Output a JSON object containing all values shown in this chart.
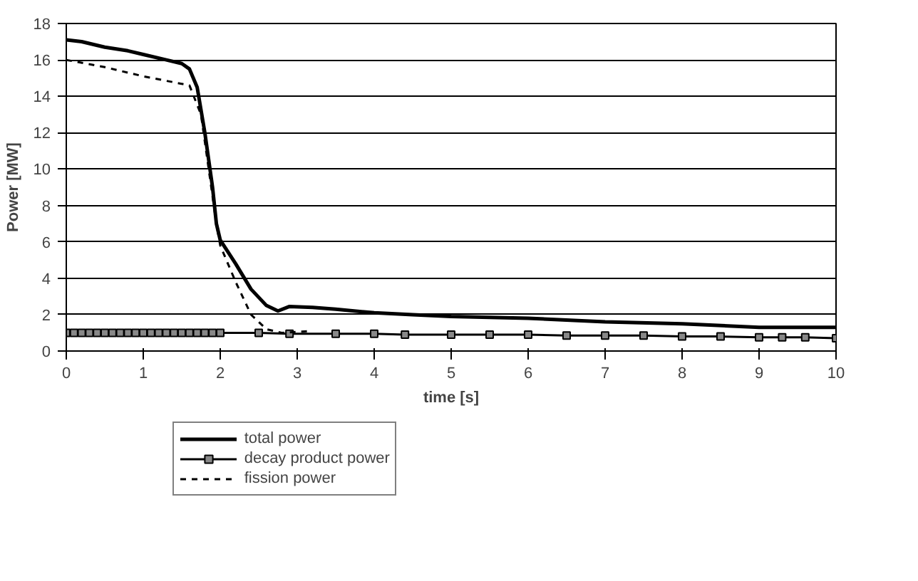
{
  "chart_data": {
    "type": "line",
    "xlabel": "time [s]",
    "ylabel": "Power [MW]",
    "xlim": [
      0,
      10
    ],
    "ylim": [
      0,
      18
    ],
    "xticks": [
      0,
      1,
      2,
      3,
      4,
      5,
      6,
      7,
      8,
      9,
      10
    ],
    "yticks": [
      0,
      2,
      4,
      6,
      8,
      10,
      12,
      14,
      16,
      18
    ],
    "grid": "y",
    "legend": "bottom",
    "series": [
      {
        "name": "total power",
        "color": "#000000",
        "line_style": "solid",
        "marker": "none",
        "x": [
          0,
          0.2,
          0.5,
          0.8,
          1.0,
          1.3,
          1.5,
          1.6,
          1.7,
          1.8,
          1.9,
          1.95,
          2.0,
          2.2,
          2.4,
          2.6,
          2.75,
          2.9,
          3.2,
          3.5,
          4,
          4.5,
          5,
          6,
          7,
          8,
          9,
          10
        ],
        "values": [
          17.1,
          17.0,
          16.7,
          16.5,
          16.3,
          16.0,
          15.8,
          15.5,
          14.5,
          12,
          9,
          7,
          6.1,
          4.8,
          3.4,
          2.5,
          2.2,
          2.45,
          2.4,
          2.3,
          2.1,
          2.0,
          1.9,
          1.8,
          1.6,
          1.5,
          1.3,
          1.3
        ]
      },
      {
        "name": "decay product power",
        "color": "#000000",
        "line_style": "solid",
        "marker": "square",
        "x": [
          0,
          0.1,
          0.2,
          0.3,
          0.4,
          0.5,
          0.6,
          0.7,
          0.8,
          0.9,
          1.0,
          1.1,
          1.2,
          1.3,
          1.4,
          1.5,
          1.6,
          1.7,
          1.8,
          1.9,
          2.0,
          2.5,
          2.9,
          3.5,
          4.0,
          4.4,
          5.0,
          5.5,
          6.0,
          6.5,
          7.0,
          7.5,
          8.0,
          8.5,
          9.0,
          9.3,
          9.6,
          10
        ],
        "values": [
          1.0,
          1.0,
          1.0,
          1.0,
          1.0,
          1.0,
          1.0,
          1.0,
          1.0,
          1.0,
          1.0,
          1.0,
          1.0,
          1.0,
          1.0,
          1.0,
          1.0,
          1.0,
          1.0,
          1.0,
          1.0,
          1.0,
          0.95,
          0.95,
          0.95,
          0.9,
          0.9,
          0.9,
          0.9,
          0.85,
          0.85,
          0.85,
          0.8,
          0.8,
          0.75,
          0.75,
          0.75,
          0.7
        ]
      },
      {
        "name": "fission power",
        "color": "#000000",
        "line_style": "dashed",
        "marker": "none",
        "x": [
          0,
          0.5,
          1.0,
          1.6,
          1.75,
          1.85,
          1.95,
          2.0,
          2.2,
          2.4,
          2.6,
          2.8,
          3.2
        ],
        "values": [
          16.0,
          15.6,
          15.1,
          14.6,
          13,
          10,
          7,
          5.8,
          3.8,
          2.0,
          1.2,
          1.0,
          1.1
        ]
      }
    ]
  }
}
